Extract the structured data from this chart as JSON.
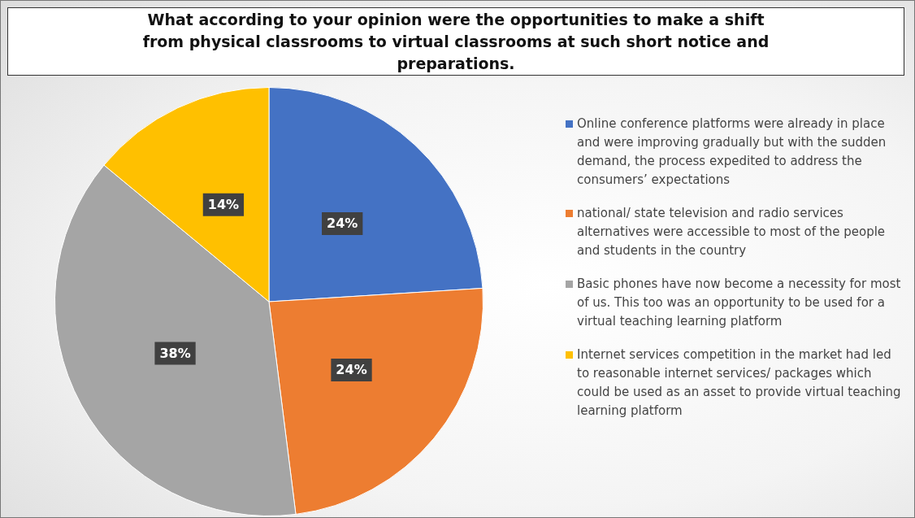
{
  "chart_data": {
    "type": "pie",
    "title": "What according to your opinion were the opportunities to make a shift from physical classrooms to virtual classrooms at such short notice and preparations.",
    "categories": [
      "Online conference platforms were already in place and were improving gradually but with the sudden demand, the process expedited  to address the consumers’ expectations",
      "national/ state television and radio services alternatives were accessible to most of the people and students in the country",
      "Basic phones have now become a necessity for most of us. This too was an opportunity to be used for a virtual teaching learning platform",
      "Internet services competition in the market had led to reasonable internet services/ packages which could be used as an asset to provide virtual teaching learning platform"
    ],
    "values": [
      24,
      24,
      38,
      14
    ],
    "value_labels": [
      "24%",
      "24%",
      "38%",
      "14%"
    ],
    "colors": [
      "#4472c4",
      "#ed7d31",
      "#a5a5a5",
      "#ffc000"
    ],
    "legend": "right"
  }
}
